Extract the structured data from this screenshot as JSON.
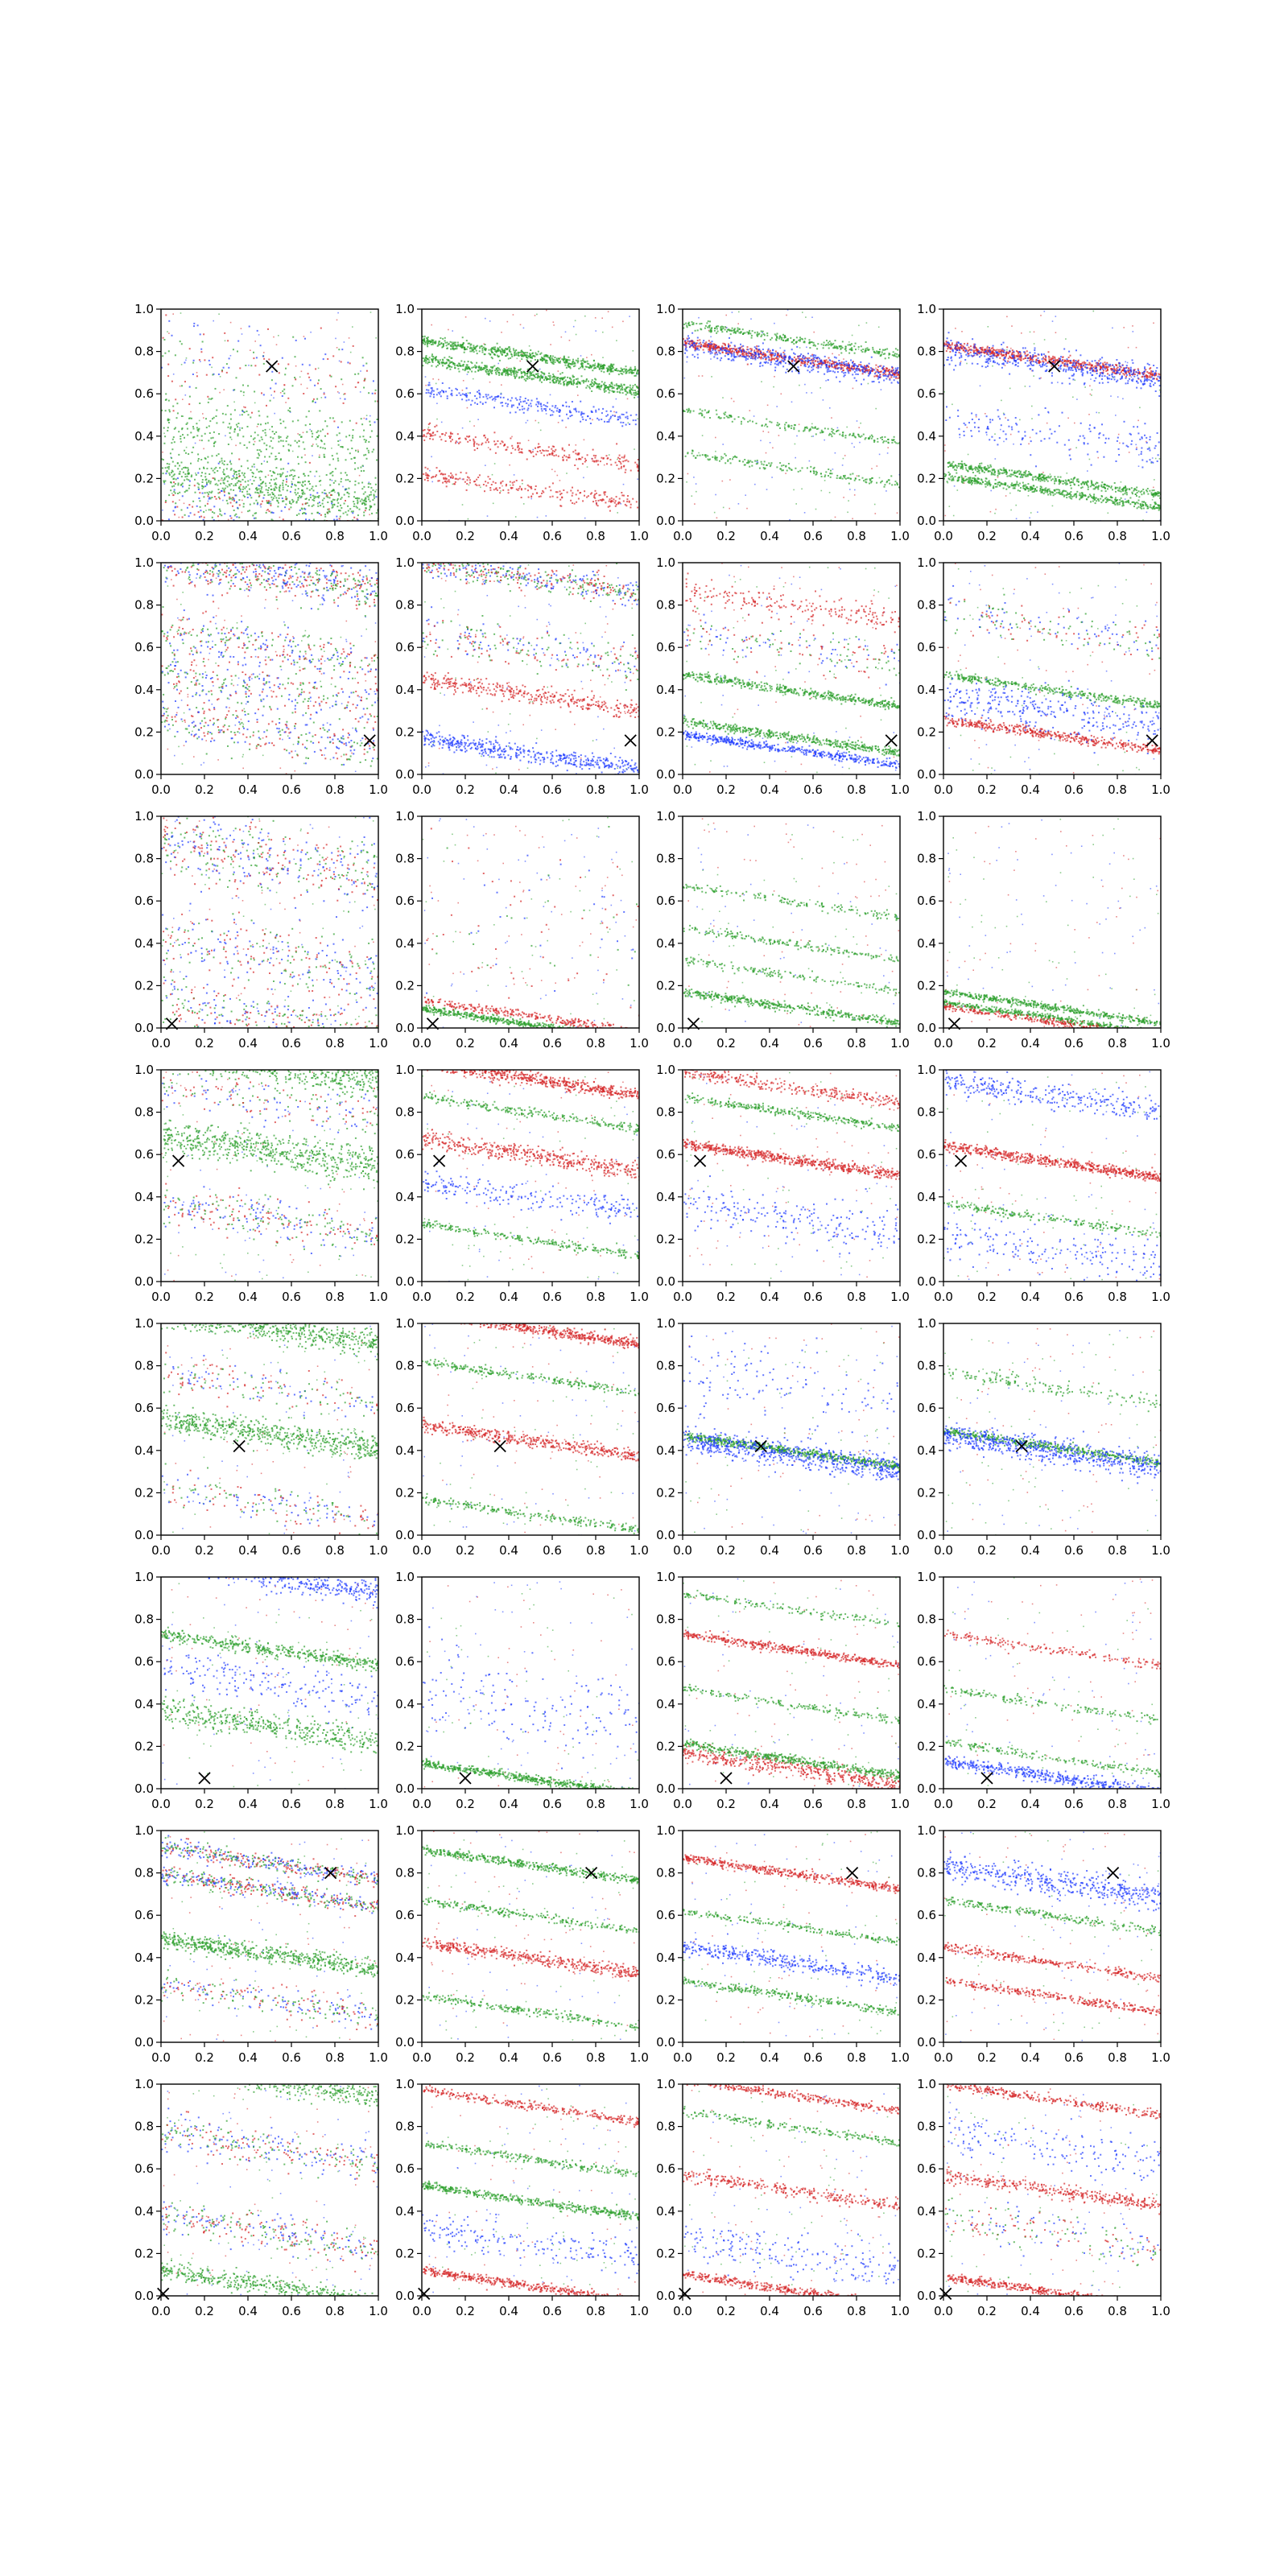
{
  "figure": {
    "layout": "8 rows x 4 columns grid of scatter subplots",
    "background": "#ffffff"
  },
  "chart_data": {
    "type": "scatter",
    "grid_rows": 8,
    "grid_cols": 4,
    "xlim": [
      0.0,
      1.0
    ],
    "ylim": [
      0.0,
      1.0
    ],
    "xticks": [
      "0.0",
      "0.2",
      "0.4",
      "0.6",
      "0.8",
      "1.0"
    ],
    "yticks": [
      "0.0",
      "0.2",
      "0.4",
      "0.6",
      "0.8",
      "1.0"
    ],
    "grid": false,
    "legend": "none",
    "series_colors": {
      "red": "#d62728",
      "green": "#2ca02c",
      "blue": "#1f3cff"
    },
    "marker_color": "#000000",
    "rows": [
      {
        "x_marker": [
          0.51,
          0.73
        ],
        "bands": [
          [
            {
              "y0": 0.16,
              "c": "green",
              "d": 2,
              "n": 0.06
            },
            {
              "y0": 0.4,
              "c": "green",
              "d": 1,
              "n": 0.07
            },
            {
              "y0": 0.05,
              "c": "mix",
              "d": 1,
              "n": 0.09
            },
            {
              "y0": 0.7,
              "c": "mix",
              "d": 0.6,
              "n": 0.1
            }
          ],
          [
            {
              "y0": 0.78,
              "c": "green",
              "d": 2,
              "n": 0.012
            },
            {
              "y0": 0.69,
              "c": "green",
              "d": 2,
              "n": 0.012
            },
            {
              "y0": 0.34,
              "c": "red",
              "d": 0.8,
              "n": 0.02
            },
            {
              "y0": 0.15,
              "c": "red",
              "d": 0.8,
              "n": 0.02
            },
            {
              "y0": 0.55,
              "c": "blue",
              "d": 0.8,
              "n": 0.02
            }
          ],
          [
            {
              "y0": 0.77,
              "c": "red",
              "d": 2,
              "n": 0.012
            },
            {
              "y0": 0.76,
              "c": "blue",
              "d": 1.5,
              "n": 0.025
            },
            {
              "y0": 0.86,
              "c": "green",
              "d": 1,
              "n": 0.01
            },
            {
              "y0": 0.45,
              "c": "green",
              "d": 0.6,
              "n": 0.01
            },
            {
              "y0": 0.25,
              "c": "green",
              "d": 0.6,
              "n": 0.01
            }
          ],
          [
            {
              "y0": 0.76,
              "c": "red",
              "d": 2,
              "n": 0.012
            },
            {
              "y0": 0.74,
              "c": "blue",
              "d": 1.5,
              "n": 0.03
            },
            {
              "y0": 0.2,
              "c": "green",
              "d": 1.5,
              "n": 0.01
            },
            {
              "y0": 0.14,
              "c": "green",
              "d": 1.5,
              "n": 0.01
            },
            {
              "y0": 0.4,
              "c": "blue",
              "d": 0.5,
              "n": 0.05
            }
          ]
        ]
      },
      {
        "x_marker": [
          0.96,
          0.16
        ],
        "bands": [
          [
            {
              "y0": 0.95,
              "c": "mix",
              "d": 2,
              "n": 0.05
            },
            {
              "y0": 0.6,
              "c": "mix",
              "d": 1,
              "n": 0.05
            },
            {
              "y0": 0.2,
              "c": "mix",
              "d": 1,
              "n": 0.05
            },
            {
              "y0": 0.4,
              "c": "mix",
              "d": 1,
              "n": 0.06
            }
          ],
          [
            {
              "y0": 0.93,
              "c": "mix",
              "d": 1.5,
              "n": 0.03
            },
            {
              "y0": 0.38,
              "c": "red",
              "d": 1.2,
              "n": 0.02
            },
            {
              "y0": 0.1,
              "c": "blue",
              "d": 1.5,
              "n": 0.02
            },
            {
              "y0": 0.6,
              "c": "mix",
              "d": 0.8,
              "n": 0.05
            }
          ],
          [
            {
              "y0": 0.4,
              "c": "green",
              "d": 1.5,
              "n": 0.01
            },
            {
              "y0": 0.18,
              "c": "green",
              "d": 1.5,
              "n": 0.01
            },
            {
              "y0": 0.12,
              "c": "blue",
              "d": 1.5,
              "n": 0.01
            },
            {
              "y0": 0.8,
              "c": "red",
              "d": 0.7,
              "n": 0.03
            },
            {
              "y0": 0.6,
              "c": "mix",
              "d": 0.6,
              "n": 0.05
            }
          ],
          [
            {
              "y0": 0.19,
              "c": "red",
              "d": 1.5,
              "n": 0.012
            },
            {
              "y0": 0.4,
              "c": "green",
              "d": 1.2,
              "n": 0.01
            },
            {
              "y0": 0.3,
              "c": "blue",
              "d": 1,
              "n": 0.05
            },
            {
              "y0": 0.7,
              "c": "mix",
              "d": 0.6,
              "n": 0.05
            }
          ]
        ]
      },
      {
        "x_marker": [
          0.05,
          0.02
        ],
        "bands": [
          [
            {
              "y0": 0.8,
              "c": "mix",
              "d": 1.5,
              "n": 0.08
            },
            {
              "y0": 0.35,
              "c": "mix",
              "d": 1,
              "n": 0.08
            },
            {
              "y0": 0.05,
              "c": "mix",
              "d": 1,
              "n": 0.06
            }
          ],
          [
            {
              "y0": 0.02,
              "c": "green",
              "d": 2,
              "n": 0.008
            },
            {
              "y0": 0.06,
              "c": "red",
              "d": 1,
              "n": 0.01
            },
            {
              "y0": 0.5,
              "c": "mix",
              "d": 0.3,
              "n": 0.2
            }
          ],
          [
            {
              "y0": 0.1,
              "c": "green",
              "d": 1.5,
              "n": 0.01
            },
            {
              "y0": 0.4,
              "c": "green",
              "d": 0.6,
              "n": 0.01
            },
            {
              "y0": 0.6,
              "c": "green",
              "d": 0.5,
              "n": 0.01
            },
            {
              "y0": 0.25,
              "c": "green",
              "d": 0.5,
              "n": 0.01
            }
          ],
          [
            {
              "y0": 0.1,
              "c": "green",
              "d": 1.5,
              "n": 0.008
            },
            {
              "y0": 0.05,
              "c": "green",
              "d": 1.5,
              "n": 0.008
            },
            {
              "y0": 0.03,
              "c": "red",
              "d": 1,
              "n": 0.008
            }
          ]
        ]
      },
      {
        "x_marker": [
          0.08,
          0.57
        ],
        "bands": [
          [
            {
              "y0": 1.02,
              "c": "green",
              "d": 2,
              "n": 0.04
            },
            {
              "y0": 0.62,
              "c": "green",
              "d": 2,
              "n": 0.04
            },
            {
              "y0": 0.3,
              "c": "mix",
              "d": 1,
              "n": 0.05
            },
            {
              "y0": 0.85,
              "c": "mix",
              "d": 0.6,
              "n": 0.05
            }
          ],
          [
            {
              "y0": 0.96,
              "c": "red",
              "d": 2,
              "n": 0.015
            },
            {
              "y0": 0.6,
              "c": "red",
              "d": 1.5,
              "n": 0.02
            },
            {
              "y0": 0.8,
              "c": "green",
              "d": 0.8,
              "n": 0.01
            },
            {
              "y0": 0.2,
              "c": "green",
              "d": 0.8,
              "n": 0.01
            },
            {
              "y0": 0.4,
              "c": "blue",
              "d": 0.7,
              "n": 0.03
            }
          ],
          [
            {
              "y0": 0.58,
              "c": "red",
              "d": 2,
              "n": 0.012
            },
            {
              "y0": 0.92,
              "c": "red",
              "d": 1,
              "n": 0.015
            },
            {
              "y0": 0.8,
              "c": "green",
              "d": 1,
              "n": 0.01
            },
            {
              "y0": 0.3,
              "c": "blue",
              "d": 0.7,
              "n": 0.05
            }
          ],
          [
            {
              "y0": 0.57,
              "c": "red",
              "d": 2,
              "n": 0.012
            },
            {
              "y0": 0.88,
              "c": "blue",
              "d": 1,
              "n": 0.03
            },
            {
              "y0": 0.3,
              "c": "green",
              "d": 0.7,
              "n": 0.01
            },
            {
              "y0": 0.15,
              "c": "blue",
              "d": 0.6,
              "n": 0.05
            }
          ]
        ]
      },
      {
        "x_marker": [
          0.36,
          0.42
        ],
        "bands": [
          [
            {
              "y0": 0.98,
              "c": "green",
              "d": 2,
              "n": 0.03
            },
            {
              "y0": 0.48,
              "c": "green",
              "d": 2,
              "n": 0.03
            },
            {
              "y0": 0.7,
              "c": "mix",
              "d": 0.6,
              "n": 0.05
            },
            {
              "y0": 0.15,
              "c": "mix",
              "d": 0.6,
              "n": 0.05
            }
          ],
          [
            {
              "y0": 0.98,
              "c": "red",
              "d": 2,
              "n": 0.012
            },
            {
              "y0": 0.45,
              "c": "red",
              "d": 1.5,
              "n": 0.015
            },
            {
              "y0": 0.75,
              "c": "green",
              "d": 0.8,
              "n": 0.01
            },
            {
              "y0": 0.1,
              "c": "green",
              "d": 0.8,
              "n": 0.01
            }
          ],
          [
            {
              "y0": 0.4,
              "c": "green",
              "d": 2,
              "n": 0.01
            },
            {
              "y0": 0.38,
              "c": "blue",
              "d": 2,
              "n": 0.03
            },
            {
              "y0": 0.7,
              "c": "blue",
              "d": 0.4,
              "n": 0.1
            }
          ],
          [
            {
              "y0": 0.42,
              "c": "green",
              "d": 1.5,
              "n": 0.01
            },
            {
              "y0": 0.4,
              "c": "blue",
              "d": 2,
              "n": 0.03
            },
            {
              "y0": 0.7,
              "c": "green",
              "d": 0.5,
              "n": 0.02
            }
          ]
        ]
      },
      {
        "x_marker": [
          0.2,
          0.05
        ],
        "bands": [
          [
            {
              "y0": 1.0,
              "c": "blue",
              "d": 1.5,
              "n": 0.03
            },
            {
              "y0": 0.66,
              "c": "green",
              "d": 1.5,
              "n": 0.015
            },
            {
              "y0": 0.3,
              "c": "green",
              "d": 1.5,
              "n": 0.03
            },
            {
              "y0": 0.5,
              "c": "blue",
              "d": 0.6,
              "n": 0.05
            }
          ],
          [
            {
              "y0": 0.05,
              "c": "green",
              "d": 2,
              "n": 0.01
            },
            {
              "y0": 0.4,
              "c": "blue",
              "d": 0.5,
              "n": 0.1
            }
          ],
          [
            {
              "y0": 0.66,
              "c": "red",
              "d": 1.5,
              "n": 0.01
            },
            {
              "y0": 0.1,
              "c": "red",
              "d": 1.5,
              "n": 0.02
            },
            {
              "y0": 0.14,
              "c": "green",
              "d": 1.5,
              "n": 0.01
            },
            {
              "y0": 0.4,
              "c": "green",
              "d": 0.6,
              "n": 0.01
            },
            {
              "y0": 0.85,
              "c": "green",
              "d": 0.5,
              "n": 0.01
            }
          ],
          [
            {
              "y0": 0.06,
              "c": "blue",
              "d": 1.5,
              "n": 0.015
            },
            {
              "y0": 0.66,
              "c": "red",
              "d": 0.6,
              "n": 0.01
            },
            {
              "y0": 0.4,
              "c": "green",
              "d": 0.5,
              "n": 0.01
            },
            {
              "y0": 0.15,
              "c": "green",
              "d": 0.6,
              "n": 0.01
            }
          ]
        ]
      },
      {
        "x_marker": [
          0.78,
          0.8
        ],
        "bands": [
          [
            {
              "y0": 0.85,
              "c": "mix",
              "d": 1.5,
              "n": 0.02
            },
            {
              "y0": 0.72,
              "c": "mix",
              "d": 1.5,
              "n": 0.02
            },
            {
              "y0": 0.42,
              "c": "green",
              "d": 2,
              "n": 0.02
            },
            {
              "y0": 0.2,
              "c": "mix",
              "d": 0.8,
              "n": 0.03
            }
          ],
          [
            {
              "y0": 0.84,
              "c": "green",
              "d": 1.5,
              "n": 0.01
            },
            {
              "y0": 0.4,
              "c": "red",
              "d": 1.5,
              "n": 0.015
            },
            {
              "y0": 0.6,
              "c": "green",
              "d": 0.8,
              "n": 0.01
            },
            {
              "y0": 0.15,
              "c": "green",
              "d": 0.8,
              "n": 0.01
            }
          ],
          [
            {
              "y0": 0.8,
              "c": "red",
              "d": 1.5,
              "n": 0.01
            },
            {
              "y0": 0.38,
              "c": "blue",
              "d": 1.2,
              "n": 0.02
            },
            {
              "y0": 0.22,
              "c": "green",
              "d": 1,
              "n": 0.01
            },
            {
              "y0": 0.55,
              "c": "green",
              "d": 0.7,
              "n": 0.01
            }
          ],
          [
            {
              "y0": 0.76,
              "c": "blue",
              "d": 1.5,
              "n": 0.03
            },
            {
              "y0": 0.38,
              "c": "red",
              "d": 1,
              "n": 0.01
            },
            {
              "y0": 0.22,
              "c": "red",
              "d": 1,
              "n": 0.01
            },
            {
              "y0": 0.6,
              "c": "green",
              "d": 0.8,
              "n": 0.01
            }
          ]
        ]
      },
      {
        "x_marker": [
          0.01,
          0.01
        ],
        "bands": [
          [
            {
              "y0": 1.02,
              "c": "green",
              "d": 1.5,
              "n": 0.03
            },
            {
              "y0": 0.7,
              "c": "mix",
              "d": 1,
              "n": 0.04
            },
            {
              "y0": 0.3,
              "c": "mix",
              "d": 1,
              "n": 0.04
            },
            {
              "y0": 0.05,
              "c": "green",
              "d": 1.5,
              "n": 0.02
            }
          ],
          [
            {
              "y0": 0.9,
              "c": "red",
              "d": 1,
              "n": 0.01
            },
            {
              "y0": 0.45,
              "c": "green",
              "d": 1.5,
              "n": 0.01
            },
            {
              "y0": 0.65,
              "c": "green",
              "d": 0.8,
              "n": 0.01
            },
            {
              "y0": 0.05,
              "c": "red",
              "d": 1.5,
              "n": 0.01
            },
            {
              "y0": 0.25,
              "c": "blue",
              "d": 0.6,
              "n": 0.04
            }
          ],
          [
            {
              "y0": 0.95,
              "c": "red",
              "d": 1,
              "n": 0.01
            },
            {
              "y0": 0.5,
              "c": "red",
              "d": 1,
              "n": 0.015
            },
            {
              "y0": 0.03,
              "c": "red",
              "d": 1.5,
              "n": 0.01
            },
            {
              "y0": 0.8,
              "c": "green",
              "d": 0.7,
              "n": 0.01
            },
            {
              "y0": 0.2,
              "c": "blue",
              "d": 0.6,
              "n": 0.05
            }
          ],
          [
            {
              "y0": 0.93,
              "c": "red",
              "d": 1,
              "n": 0.01
            },
            {
              "y0": 0.5,
              "c": "red",
              "d": 1.2,
              "n": 0.015
            },
            {
              "y0": 0.02,
              "c": "red",
              "d": 1.5,
              "n": 0.01
            },
            {
              "y0": 0.3,
              "c": "mix",
              "d": 0.6,
              "n": 0.05
            },
            {
              "y0": 0.7,
              "c": "blue",
              "d": 0.5,
              "n": 0.05
            }
          ]
        ]
      }
    ]
  }
}
